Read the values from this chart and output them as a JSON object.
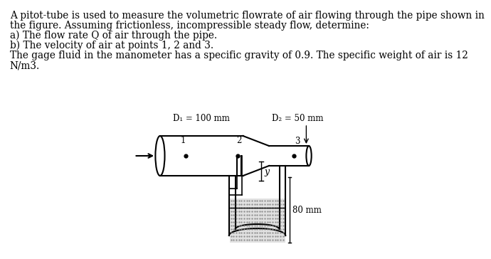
{
  "text_line1": "A pitot-tube is used to measure the volumetric flowrate of air flowing through the pipe shown in",
  "text_line2": "the figure. Assuming frictionless, incompressible steady flow, determine:",
  "text_line3": "a) The flow rate Q of air through the pipe.",
  "text_line4": "b) The velocity of air at points 1, 2 and 3.",
  "text_line5": "The gage fluid in the manometer has a specific gravity of 0.9. The specific weight of air is 12",
  "text_line6": "N/m3.",
  "label_D1": "D₁ = 100 mm",
  "label_D2": "D₂ = 50 mm",
  "label_80mm": "80 mm",
  "label_y": "y",
  "point1": "1",
  "point2": "2",
  "point3": "3",
  "bg_color": "#ffffff",
  "line_color": "#000000",
  "font_size_text": 9.8,
  "font_size_label": 8.5,
  "font_size_point": 8.5
}
